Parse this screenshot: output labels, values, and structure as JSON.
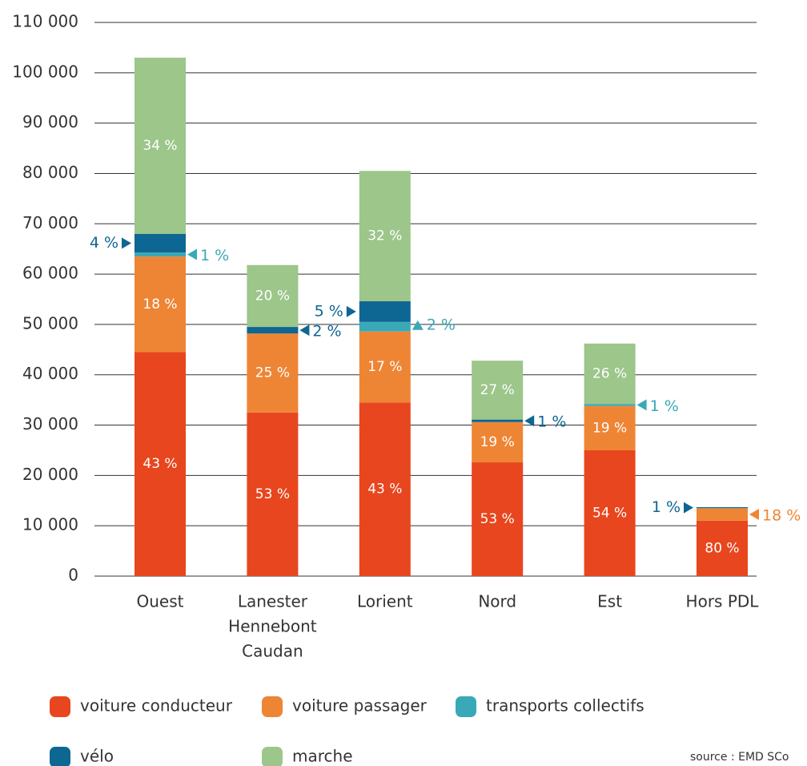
{
  "chart_data": {
    "type": "stacked_bar",
    "categories": [
      [
        "Ouest"
      ],
      [
        "Lanester",
        "Hennebont",
        "Caudan"
      ],
      [
        "Lorient"
      ],
      [
        "Nord"
      ],
      [
        "Est"
      ],
      [
        "Hors PDL"
      ]
    ],
    "series": [
      {
        "name": "voiture conducteur",
        "color": "#e8461e",
        "values": [
          44500,
          32500,
          34500,
          22600,
          25000,
          11000
        ],
        "share_labels": [
          "43 %",
          "53 %",
          "43 %",
          "53 %",
          "54 %",
          "80 %"
        ]
      },
      {
        "name": "voiture passager",
        "color": "#ee8535",
        "values": [
          19000,
          15700,
          14100,
          8000,
          8800,
          2500
        ],
        "share_labels": [
          "18 %",
          "25 %",
          "17 %",
          "19 %",
          "19 %",
          "18 %"
        ]
      },
      {
        "name": "transports collectifs",
        "color": "#3aa9b7",
        "values": [
          800,
          0,
          1900,
          0,
          400,
          0
        ],
        "share_labels": [
          "1 %",
          null,
          "2 %",
          null,
          "1 %",
          null
        ]
      },
      {
        "name": "vélo",
        "color": "#0e6693",
        "values": [
          3700,
          1300,
          4100,
          500,
          0,
          200
        ],
        "share_labels": [
          "4 %",
          "2 %",
          "5 %",
          "1 %",
          null,
          "1 %"
        ]
      },
      {
        "name": "marche",
        "color": "#9cc68a",
        "values": [
          35000,
          12300,
          25900,
          11700,
          12000,
          0
        ],
        "share_labels": [
          "34 %",
          "20 %",
          "32 %",
          "27 %",
          "26 %",
          null
        ]
      }
    ],
    "ylim": [
      0,
      110000
    ],
    "yticks": [
      0,
      {
        "value": 10000,
        "label": "10 000"
      },
      {
        "value": 20000,
        "label": "20 000"
      },
      {
        "value": 30000,
        "label": "30 000"
      },
      {
        "value": 40000,
        "label": "40 000"
      },
      {
        "value": 50000,
        "label": "50 000"
      },
      {
        "value": 60000,
        "label": "60 000"
      },
      {
        "value": 70000,
        "label": "70 000"
      },
      {
        "value": 80000,
        "label": "80 000"
      },
      {
        "value": 90000,
        "label": "90 000"
      },
      {
        "value": 100000,
        "label": "100 000"
      },
      {
        "value": 110000,
        "label": "110 000"
      }
    ],
    "grid": true,
    "source": "source : EMD SCo"
  }
}
